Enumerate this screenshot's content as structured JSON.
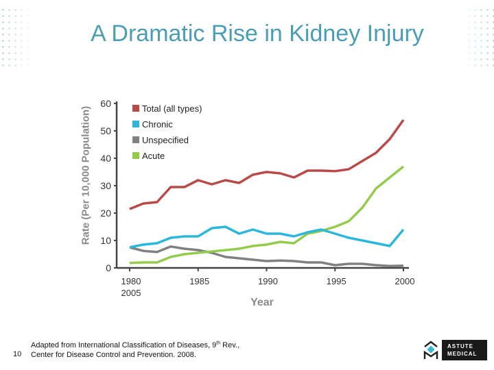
{
  "title": "A Dramatic Rise in Kidney Injury",
  "chart_data": {
    "type": "line",
    "title": "",
    "xlabel": "Year",
    "ylabel": "Rate (Per 10,000 Population)",
    "ylim": [
      0,
      60
    ],
    "xlim": [
      1980,
      2000
    ],
    "yticks": [
      0,
      10,
      20,
      30,
      40,
      50,
      60
    ],
    "xtick_labels": [
      "1980\n2005",
      "1985",
      "1990",
      "1995",
      "2000"
    ],
    "xtick_values": [
      1980,
      1985,
      1990,
      1995,
      2000
    ],
    "grid": false,
    "legend_position": "top-left",
    "x": [
      1980,
      1981,
      1982,
      1983,
      1984,
      1985,
      1986,
      1987,
      1988,
      1989,
      1990,
      1991,
      1992,
      1993,
      1994,
      1995,
      1996,
      1997,
      1998,
      1999,
      2000
    ],
    "series": [
      {
        "name": "Total (all types)",
        "color": "#b94a48",
        "values": [
          21.5,
          23.5,
          24,
          29.5,
          29.5,
          32,
          30.5,
          32,
          31,
          34,
          35,
          34.5,
          33,
          35.5,
          35.5,
          35.3,
          36,
          39,
          42,
          47,
          54
        ]
      },
      {
        "name": "Chronic",
        "color": "#2ab7dc",
        "values": [
          7.5,
          8.5,
          9,
          11,
          11.5,
          11.5,
          14.5,
          15,
          12.5,
          14,
          12.5,
          12.5,
          11.5,
          13,
          14,
          12.5,
          11,
          10,
          9,
          8,
          14
        ]
      },
      {
        "name": "Unspecified",
        "color": "#808080",
        "values": [
          7.5,
          6.2,
          5.8,
          7.8,
          7,
          6.5,
          5.5,
          4,
          3.5,
          3,
          2.5,
          2.7,
          2.5,
          2,
          2,
          1,
          1.5,
          1.5,
          1,
          0.7,
          0.8
        ]
      },
      {
        "name": "Acute",
        "color": "#92cc4a",
        "values": [
          1.8,
          2,
          2,
          4,
          5,
          5.5,
          6,
          6.5,
          7,
          8,
          8.5,
          9.5,
          9,
          12.5,
          13.5,
          15,
          17,
          22,
          29,
          33,
          37
        ]
      }
    ]
  },
  "footer": {
    "source_line1_pre": "Adapted from International Classification of Diseases, 9",
    "source_line1_sup": "th",
    "source_line1_post": " Rev.,",
    "source_line2": "Center for Disease Control and Prevention. 2008.",
    "page_number": "10",
    "logo_text": "ASTUTE MEDICAL"
  }
}
